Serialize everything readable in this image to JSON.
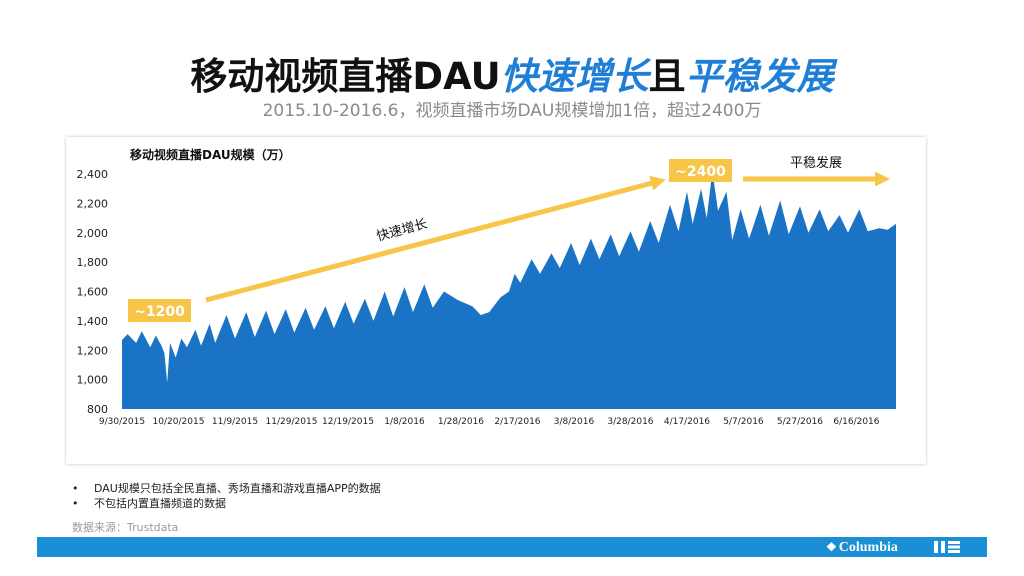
{
  "page": {
    "title_main": "移动视频直播DAU",
    "title_hl1": "快速增长",
    "title_mid": "且",
    "title_hl2": "平稳发展",
    "subtitle": "2015.10-2016.6，视频直播市场DAU规模增加1倍，超过2400万",
    "notes": [
      "DAU规模只包括全民直播、秀场直播和游戏直播APP的数据",
      "不包括内置直播频道的数据"
    ],
    "bullet": "•",
    "source": "数据来源：Trustdata",
    "logo_text": "Columbia",
    "logo_mark": "❖"
  },
  "colors": {
    "area": "#1a73c5",
    "arrow": "#f7c547",
    "accent": "#1f7fd6",
    "footer": "#1a8fd6"
  },
  "chart_data": {
    "type": "area",
    "title": "移动视频直播DAU规模（万）",
    "ylim": [
      800,
      2400
    ],
    "yticks": [
      800,
      1000,
      1200,
      1400,
      1600,
      1800,
      2000,
      2200,
      2400
    ],
    "ytick_labels": [
      "800",
      "1,000",
      "1,200",
      "1,400",
      "1,600",
      "1,800",
      "2,000",
      "2,200",
      "2,400"
    ],
    "xlim": [
      "2015-09-30",
      "2016-06-30"
    ],
    "xticks": [
      "2015-09-30",
      "2015-10-20",
      "2015-11-09",
      "2015-11-29",
      "2015-12-19",
      "2016-01-08",
      "2016-01-28",
      "2016-02-17",
      "2016-03-08",
      "2016-03-28",
      "2016-04-17",
      "2016-05-07",
      "2016-05-27",
      "2016-06-16"
    ],
    "xtick_labels": [
      "9/30/2015",
      "10/20/2015",
      "11/9/2015",
      "11/29/2015",
      "12/19/2015",
      "1/8/2016",
      "1/28/2016",
      "2/17/2016",
      "3/8/2016",
      "3/28/2016",
      "4/17/2016",
      "5/7/2016",
      "5/27/2016",
      "6/16/2016"
    ],
    "series": [
      {
        "points": [
          [
            "2015-09-30",
            1270
          ],
          [
            "2015-10-02",
            1310
          ],
          [
            "2015-10-05",
            1250
          ],
          [
            "2015-10-07",
            1330
          ],
          [
            "2015-10-10",
            1220
          ],
          [
            "2015-10-12",
            1300
          ],
          [
            "2015-10-14",
            1230
          ],
          [
            "2015-10-15",
            1180
          ],
          [
            "2015-10-16",
            980
          ],
          [
            "2015-10-17",
            1250
          ],
          [
            "2015-10-19",
            1150
          ],
          [
            "2015-10-21",
            1280
          ],
          [
            "2015-10-23",
            1220
          ],
          [
            "2015-10-26",
            1340
          ],
          [
            "2015-10-28",
            1230
          ],
          [
            "2015-10-31",
            1380
          ],
          [
            "2015-11-02",
            1250
          ],
          [
            "2015-11-06",
            1440
          ],
          [
            "2015-11-09",
            1280
          ],
          [
            "2015-11-13",
            1460
          ],
          [
            "2015-11-16",
            1290
          ],
          [
            "2015-11-20",
            1470
          ],
          [
            "2015-11-23",
            1310
          ],
          [
            "2015-11-27",
            1480
          ],
          [
            "2015-11-30",
            1320
          ],
          [
            "2015-12-04",
            1490
          ],
          [
            "2015-12-07",
            1340
          ],
          [
            "2015-12-11",
            1500
          ],
          [
            "2015-12-14",
            1350
          ],
          [
            "2015-12-18",
            1530
          ],
          [
            "2015-12-21",
            1380
          ],
          [
            "2015-12-25",
            1550
          ],
          [
            "2015-12-28",
            1400
          ],
          [
            "2016-01-01",
            1600
          ],
          [
            "2016-01-04",
            1430
          ],
          [
            "2016-01-08",
            1630
          ],
          [
            "2016-01-11",
            1460
          ],
          [
            "2016-01-15",
            1650
          ],
          [
            "2016-01-18",
            1490
          ],
          [
            "2016-01-22",
            1600
          ],
          [
            "2016-01-27",
            1540
          ],
          [
            "2016-02-01",
            1500
          ],
          [
            "2016-02-04",
            1440
          ],
          [
            "2016-02-07",
            1460
          ],
          [
            "2016-02-11",
            1560
          ],
          [
            "2016-02-14",
            1600
          ],
          [
            "2016-02-16",
            1720
          ],
          [
            "2016-02-18",
            1660
          ],
          [
            "2016-02-22",
            1820
          ],
          [
            "2016-02-25",
            1720
          ],
          [
            "2016-02-29",
            1860
          ],
          [
            "2016-03-03",
            1760
          ],
          [
            "2016-03-07",
            1930
          ],
          [
            "2016-03-10",
            1780
          ],
          [
            "2016-03-14",
            1960
          ],
          [
            "2016-03-17",
            1820
          ],
          [
            "2016-03-21",
            1990
          ],
          [
            "2016-03-24",
            1840
          ],
          [
            "2016-03-28",
            2010
          ],
          [
            "2016-03-31",
            1870
          ],
          [
            "2016-04-04",
            2080
          ],
          [
            "2016-04-07",
            1930
          ],
          [
            "2016-04-11",
            2190
          ],
          [
            "2016-04-14",
            2010
          ],
          [
            "2016-04-17",
            2280
          ],
          [
            "2016-04-19",
            2060
          ],
          [
            "2016-04-22",
            2300
          ],
          [
            "2016-04-24",
            2100
          ],
          [
            "2016-04-26",
            2420
          ],
          [
            "2016-04-28",
            2150
          ],
          [
            "2016-05-01",
            2280
          ],
          [
            "2016-05-03",
            1950
          ],
          [
            "2016-05-06",
            2160
          ],
          [
            "2016-05-09",
            1960
          ],
          [
            "2016-05-13",
            2190
          ],
          [
            "2016-05-16",
            1980
          ],
          [
            "2016-05-20",
            2220
          ],
          [
            "2016-05-23",
            1990
          ],
          [
            "2016-05-27",
            2180
          ],
          [
            "2016-05-30",
            2000
          ],
          [
            "2016-06-03",
            2160
          ],
          [
            "2016-06-06",
            2010
          ],
          [
            "2016-06-10",
            2120
          ],
          [
            "2016-06-13",
            2000
          ],
          [
            "2016-06-17",
            2160
          ],
          [
            "2016-06-20",
            2010
          ],
          [
            "2016-06-24",
            2030
          ],
          [
            "2016-06-27",
            2020
          ],
          [
            "2016-06-30",
            2060
          ]
        ]
      }
    ],
    "annotations": {
      "start_value": "~1200",
      "peak_value": "~2400",
      "growth_label": "快速增长",
      "stable_label": "平稳发展"
    }
  }
}
